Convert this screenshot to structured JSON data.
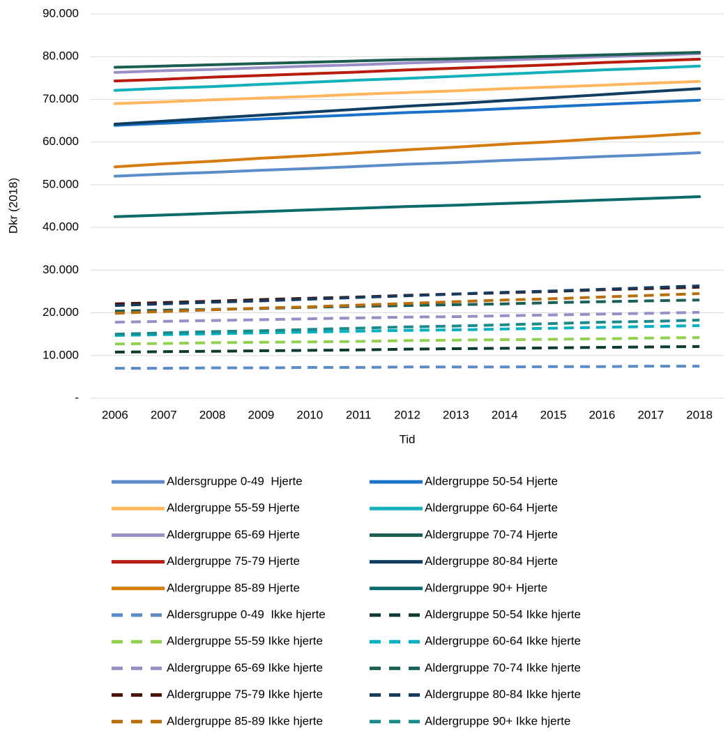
{
  "chart_data": {
    "type": "line",
    "x_label": "Tid",
    "y_label": "Dkr (2018)",
    "categories": [
      "2006",
      "2007",
      "2008",
      "2009",
      "2010",
      "2011",
      "2012",
      "2013",
      "2014",
      "2015",
      "2016",
      "2017",
      "2018"
    ],
    "ylim": [
      0,
      90000
    ],
    "yticks": [
      {
        "value": 0,
        "label": "-"
      },
      {
        "value": 10000,
        "label": "10.000"
      },
      {
        "value": 20000,
        "label": "20.000"
      },
      {
        "value": 30000,
        "label": "30.000"
      },
      {
        "value": 40000,
        "label": "40.000"
      },
      {
        "value": 50000,
        "label": "50.000"
      },
      {
        "value": 60000,
        "label": "60.000"
      },
      {
        "value": 70000,
        "label": "70.000"
      },
      {
        "value": 80000,
        "label": "80.000"
      },
      {
        "value": 90000,
        "label": "90.000"
      }
    ],
    "grid": true,
    "series": [
      {
        "name": "Aldersgruppe 0-49  Hjerte",
        "color": "#5b8cc8",
        "dashed": false,
        "values": [
          52000,
          52500,
          52900,
          53400,
          53800,
          54300,
          54800,
          55200,
          55700,
          56100,
          56600,
          57000,
          57500
        ]
      },
      {
        "name": "Aldergruppe 50-54 Hjerte",
        "color": "#1a73c8",
        "dashed": false,
        "values": [
          63900,
          64400,
          64900,
          65400,
          65900,
          66400,
          66900,
          67300,
          67800,
          68300,
          68800,
          69300,
          69800
        ]
      },
      {
        "name": "Aldergruppe 55-59 Hjerte",
        "color": "#ffb65c",
        "dashed": false,
        "values": [
          69000,
          69400,
          69900,
          70300,
          70700,
          71200,
          71600,
          72000,
          72500,
          72900,
          73300,
          73800,
          74200
        ]
      },
      {
        "name": "Aldergruppe 60-64 Hjerte",
        "color": "#14b0bb",
        "dashed": false,
        "values": [
          72100,
          72600,
          73000,
          73500,
          74000,
          74500,
          74900,
          75400,
          75900,
          76400,
          76900,
          77300,
          77800
        ]
      },
      {
        "name": "Aldergruppe 65-69 Hjerte",
        "color": "#9b8ec6",
        "dashed": false,
        "values": [
          76300,
          76700,
          77000,
          77400,
          77800,
          78100,
          78500,
          78900,
          79200,
          79600,
          80000,
          80300,
          80700
        ]
      },
      {
        "name": "Aldergruppe 70-74 Hjerte",
        "color": "#1b5e50",
        "dashed": false,
        "values": [
          77500,
          77800,
          78100,
          78400,
          78700,
          79000,
          79300,
          79500,
          79800,
          80100,
          80400,
          80700,
          81000
        ]
      },
      {
        "name": "Aldergruppe 75-79 Hjerte",
        "color": "#b71c0c",
        "dashed": false,
        "values": [
          74300,
          74700,
          75200,
          75600,
          76000,
          76400,
          76900,
          77300,
          77700,
          78100,
          78600,
          79000,
          79400
        ]
      },
      {
        "name": "Aldergruppe 80-84 Hjerte",
        "color": "#103e63",
        "dashed": false,
        "values": [
          64200,
          64900,
          65600,
          66300,
          67000,
          67700,
          68400,
          69000,
          69700,
          70400,
          71100,
          71800,
          72500
        ]
      },
      {
        "name": "Aldergruppe 85-89 Hjerte",
        "color": "#d47d0e",
        "dashed": false,
        "values": [
          54200,
          54900,
          55500,
          56200,
          56800,
          57500,
          58200,
          58800,
          59500,
          60100,
          60800,
          61400,
          62100
        ]
      },
      {
        "name": "Aldergruppe 90+ Hjerte",
        "color": "#0b6b6b",
        "dashed": false,
        "values": [
          42500,
          42900,
          43300,
          43700,
          44100,
          44500,
          44900,
          45200,
          45600,
          46000,
          46400,
          46800,
          47200
        ]
      },
      {
        "name": "Aldersgruppe 0-49  Ikke hjerte",
        "color": "#5b8cc8",
        "dashed": true,
        "values": [
          7000,
          7000,
          7100,
          7100,
          7200,
          7200,
          7300,
          7300,
          7300,
          7400,
          7400,
          7500,
          7500
        ]
      },
      {
        "name": "Aldergruppe 50-54 Ikke hjerte",
        "color": "#0d3b33",
        "dashed": true,
        "values": [
          10800,
          10900,
          11000,
          11100,
          11200,
          11300,
          11500,
          11600,
          11700,
          11800,
          11900,
          12000,
          12100
        ]
      },
      {
        "name": "Aldergruppe 55-59 Ikke hjerte",
        "color": "#92d050",
        "dashed": true,
        "values": [
          12700,
          12800,
          13000,
          13100,
          13200,
          13300,
          13500,
          13600,
          13700,
          13800,
          13900,
          14100,
          14200
        ]
      },
      {
        "name": "Aldergruppe 60-64 Ikke hjerte",
        "color": "#00b0c0",
        "dashed": true,
        "values": [
          14700,
          14900,
          15100,
          15300,
          15500,
          15700,
          15900,
          16000,
          16200,
          16400,
          16600,
          16800,
          17000
        ]
      },
      {
        "name": "Aldergruppe 65-69 Ikke hjerte",
        "color": "#9b8ec6",
        "dashed": true,
        "values": [
          17800,
          18000,
          18200,
          18400,
          18600,
          18800,
          19000,
          19100,
          19300,
          19500,
          19700,
          19900,
          20100
        ]
      },
      {
        "name": "Aldergruppe 70-74 Ikke hjerte",
        "color": "#1b6057",
        "dashed": true,
        "values": [
          20400,
          20600,
          20800,
          21000,
          21300,
          21500,
          21700,
          21900,
          22100,
          22400,
          22600,
          22800,
          23000
        ]
      },
      {
        "name": "Aldergruppe 75-79 Ikke hjerte",
        "color": "#4a1208",
        "dashed": true,
        "values": [
          22100,
          22400,
          22700,
          23100,
          23400,
          23700,
          24100,
          24400,
          24700,
          25000,
          25400,
          25700,
          26000
        ]
      },
      {
        "name": "Aldergruppe 80-84 Ikke hjerte",
        "color": "#16395c",
        "dashed": true,
        "values": [
          21700,
          22100,
          22500,
          22800,
          23200,
          23600,
          24000,
          24400,
          24800,
          25100,
          25500,
          25900,
          26300
        ]
      },
      {
        "name": "Aldergruppe 85-89 Ikke hjerte",
        "color": "#b86e0b",
        "dashed": true,
        "values": [
          19900,
          20300,
          20700,
          21100,
          21400,
          21800,
          22200,
          22600,
          23000,
          23300,
          23700,
          24100,
          24500
        ]
      },
      {
        "name": "Aldergruppe 90+ Ikke hjerte",
        "color": "#1a8a8a",
        "dashed": true,
        "values": [
          15000,
          15300,
          15600,
          15800,
          16100,
          16400,
          16700,
          16900,
          17200,
          17500,
          17800,
          18000,
          18300
        ]
      }
    ]
  }
}
